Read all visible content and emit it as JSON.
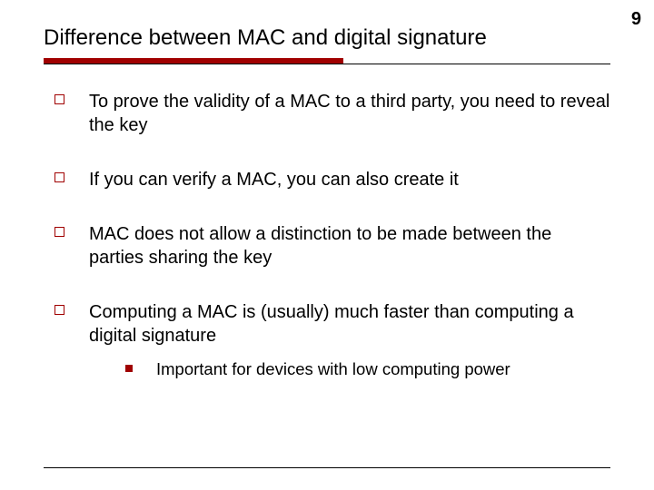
{
  "pageNumber": "9",
  "title": "Difference between MAC and digital signature",
  "colors": {
    "accent": "#a00000",
    "text": "#000000",
    "background": "#ffffff"
  },
  "bullets": [
    {
      "text": "To prove the validity of a MAC to a third party, you need to reveal the key"
    },
    {
      "text": "If you can verify a MAC, you can also create it"
    },
    {
      "text": "MAC does not allow a distinction to be made between the parties sharing the key"
    },
    {
      "text": "Computing a MAC is (usually) much faster than computing a digital signature",
      "sub": [
        {
          "text": "Important for devices with low computing power"
        }
      ]
    }
  ]
}
